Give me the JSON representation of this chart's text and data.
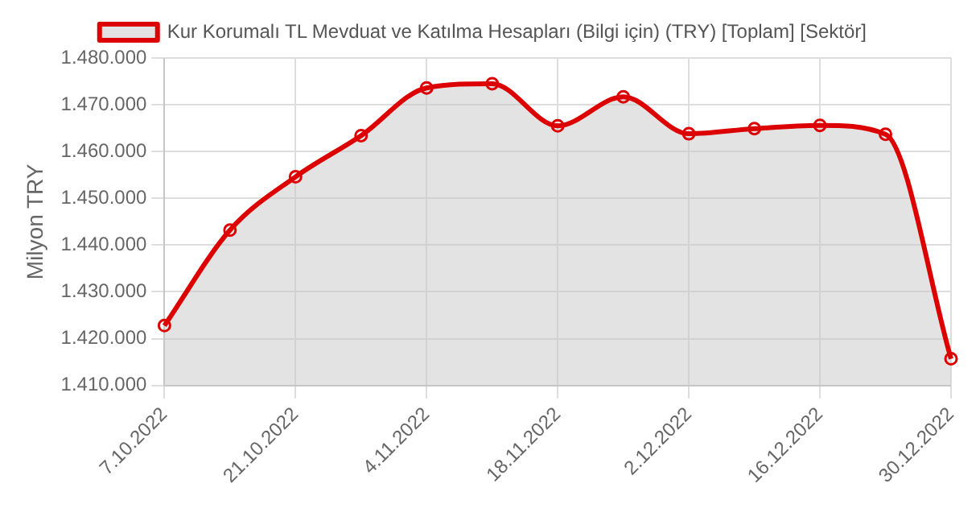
{
  "chart_data": {
    "type": "area",
    "ylabel": "Milyon TRY",
    "categories": [
      "7.10.2022",
      null,
      "21.10.2022",
      null,
      "4.11.2022",
      null,
      "18.11.2022",
      null,
      "2.12.2022",
      null,
      "16.12.2022",
      null,
      "30.12.2022"
    ],
    "series": [
      {
        "name": "Kur Korumalı TL Mevduat ve Katılma Hesapları (Bilgi için) (TRY) [Toplam] [Sektör]",
        "color": "#dd0000",
        "values": [
          1422800,
          1443200,
          1454600,
          1463400,
          1473600,
          1474500,
          1465500,
          1471700,
          1463800,
          1464900,
          1465600,
          1463700,
          1415700
        ]
      }
    ],
    "ylim": [
      1410000,
      1480000
    ],
    "yticks": [
      {
        "value": 1410000,
        "label": "1.410.000"
      },
      {
        "value": 1420000,
        "label": "1.420.000"
      },
      {
        "value": 1430000,
        "label": "1.430.000"
      },
      {
        "value": 1440000,
        "label": "1.440.000"
      },
      {
        "value": 1450000,
        "label": "1.450.000"
      },
      {
        "value": 1460000,
        "label": "1.460.000"
      },
      {
        "value": 1470000,
        "label": "1.470.000"
      },
      {
        "value": 1480000,
        "label": "1.480.000"
      }
    ],
    "grid": true,
    "legend": "top",
    "marker": "circle",
    "line_style": "solid"
  }
}
